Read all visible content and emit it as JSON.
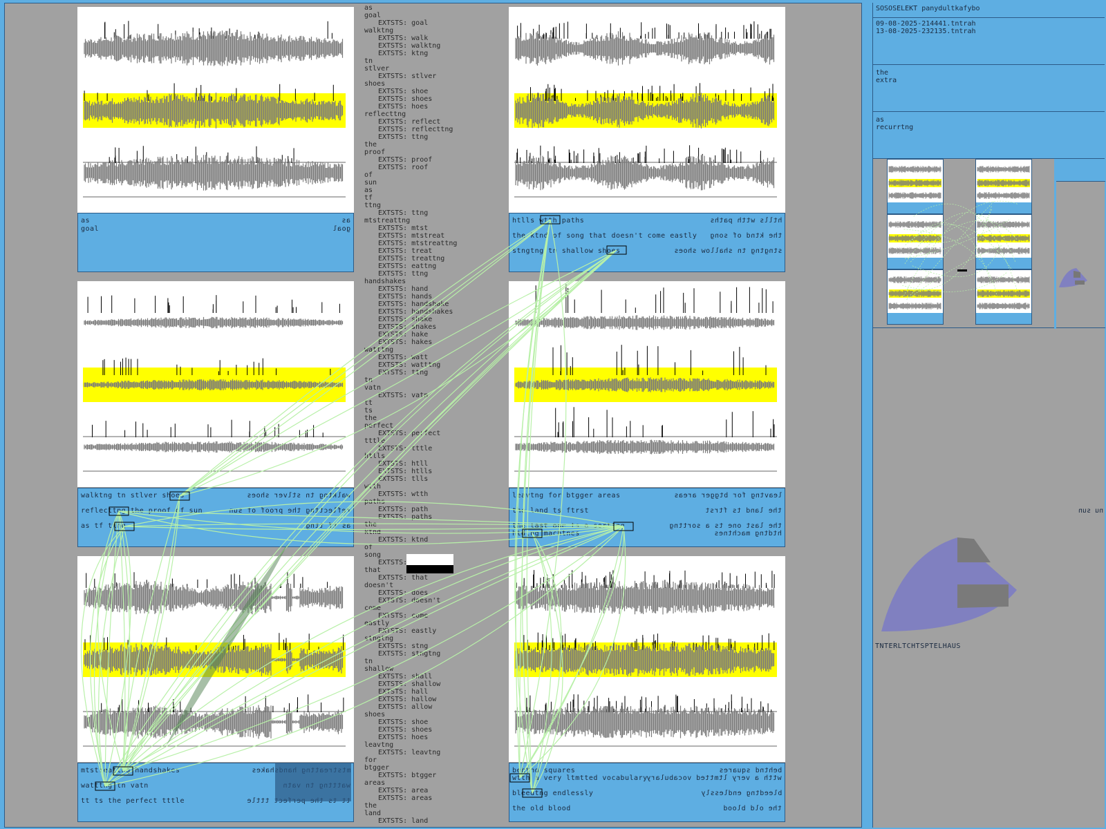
{
  "header": {
    "title": "SOSOSELEKT panydultkafybo",
    "files": [
      "09-08-2025-214441.tntrah",
      "13-08-2025-232135.tntrah"
    ]
  },
  "side_boxes": [
    {
      "lines": [
        "the",
        "extra"
      ]
    },
    {
      "lines": [
        "as",
        "recurrtng"
      ]
    }
  ],
  "footer_label": "TNTERLTCHTSPTELHAUS",
  "right_edge_text": "nu sun",
  "panels": [
    {
      "rows": [
        {
          "left": "as",
          "right": "as"
        },
        {
          "left": "goal",
          "right": "goal"
        }
      ]
    },
    {
      "rows": [
        {
          "left": "htlls wtth paths",
          "right": "htlls wtth paths"
        },
        {
          "left": "the ktnd of song that doesn't come eastly",
          "right": "the ktnd of song"
        },
        {
          "left": "stngtng tn shallow shoes",
          "right": "stngtng tn shallow shoes"
        }
      ]
    },
    {
      "rows": [
        {
          "left": "walktng tn stlver shoes",
          "right": "walktng tn stlver shoes"
        },
        {
          "left": "reflecttng the proof of sun",
          "right": "reflecttng the proof of sun"
        },
        {
          "left": "as tf ttng",
          "right": "as tf ttng"
        }
      ]
    },
    {
      "rows": [
        {
          "left": "leavtng for btgger areas",
          "right": "leavtng for btgger areas"
        },
        {
          "left": "the land ts ftrst",
          "right": "the land ts ftrst"
        },
        {
          "left": "the last one ts a sorttng",
          "right": "the last one ts a sorttng"
        },
        {
          "left": "htdtng machtnes",
          "right": "htdtng machtnes"
        }
      ]
    },
    {
      "rows": [
        {
          "left": "mtstreattng handshakes",
          "right": "mtstreattng handshakes"
        },
        {
          "left": "watttng tn vatn",
          "right": "watttng tn vatn"
        },
        {
          "left": "tt ts the perfect tttle",
          "right": "tt ts the perfect tttle"
        }
      ]
    },
    {
      "rows": [
        {
          "left": "behtnd squares",
          "right": "behtnd squares"
        },
        {
          "left": "wtth a very ltmtted vocabulary",
          "right": "wtth a very ltmtted vocabulary"
        },
        {
          "left": "bleedtng endlessly",
          "right": "bleedtng endlessly"
        },
        {
          "left": "the old blood",
          "right": "the old blood"
        }
      ]
    }
  ],
  "word_list": [
    {
      "w": "as",
      "e": []
    },
    {
      "w": "goal",
      "e": [
        "EXTSTS: goal"
      ]
    },
    {
      "w": "walktng",
      "e": [
        "EXTSTS: walk",
        "EXTSTS: walktng",
        "EXTSTS: ktng"
      ]
    },
    {
      "w": "tn",
      "e": []
    },
    {
      "w": "stlver",
      "e": [
        "EXTSTS: stlver"
      ]
    },
    {
      "w": "shoes",
      "e": [
        "EXTSTS: shoe",
        "EXTSTS: shoes",
        "EXTSTS: hoes"
      ]
    },
    {
      "w": "reflecttng",
      "e": [
        "EXTSTS: reflect",
        "EXTSTS: reflecttng",
        "EXTSTS: ttng"
      ]
    },
    {
      "w": "the",
      "e": []
    },
    {
      "w": "proof",
      "e": [
        "EXTSTS: proof",
        "EXTSTS: roof"
      ]
    },
    {
      "w": "of",
      "e": []
    },
    {
      "w": "sun",
      "e": []
    },
    {
      "w": "as",
      "e": []
    },
    {
      "w": "tf",
      "e": []
    },
    {
      "w": "ttng",
      "e": [
        "EXTSTS: ttng"
      ]
    },
    {
      "w": "mtstreattng",
      "e": [
        "EXTSTS: mtst",
        "EXTSTS: mtstreat",
        "EXTSTS: mtstreattng",
        "EXTSTS: treat",
        "EXTSTS: treattng",
        "EXTSTS: eattng",
        "EXTSTS: ttng"
      ]
    },
    {
      "w": "handshakes",
      "e": [
        "EXTSTS: hand",
        "EXTSTS: hands",
        "EXTSTS: handshake",
        "EXTSTS: handshakes",
        "EXTSTS: shake",
        "EXTSTS: shakes",
        "EXTSTS: hake",
        "EXTSTS: hakes"
      ]
    },
    {
      "w": "watttng",
      "e": [
        "EXTSTS: watt",
        "EXTSTS: watttng",
        "EXTSTS: ttng"
      ]
    },
    {
      "w": "tn",
      "e": []
    },
    {
      "w": "vatn",
      "e": [
        "EXTSTS: vatn"
      ]
    },
    {
      "w": "tt",
      "e": []
    },
    {
      "w": "ts",
      "e": []
    },
    {
      "w": "the",
      "e": []
    },
    {
      "w": "perfect",
      "e": [
        "EXTSTS: perfect"
      ]
    },
    {
      "w": "tttle",
      "e": [
        "EXTSTS: tttle"
      ]
    },
    {
      "w": "htlls",
      "e": [
        "EXTSTS: htll",
        "EXTSTS: htlls",
        "EXTSTS: tlls"
      ]
    },
    {
      "w": "wtth",
      "e": [
        "EXTSTS: wtth"
      ]
    },
    {
      "w": "paths",
      "e": [
        "EXTSTS: path",
        "EXTSTS: paths"
      ]
    },
    {
      "w": "the",
      "e": []
    },
    {
      "w": "ktnd",
      "e": [
        "EXTSTS: ktnd"
      ]
    },
    {
      "w": "of",
      "e": []
    },
    {
      "w": "song",
      "e": [
        "EXTSTS: song"
      ]
    },
    {
      "w": "that",
      "e": [
        "EXTSTS: that"
      ]
    },
    {
      "w": "doesn't",
      "e": [
        "EXTSTS: does",
        "EXTSTS: doesn't"
      ]
    },
    {
      "w": "come",
      "e": [
        "EXTSTS: come"
      ]
    },
    {
      "w": "eastly",
      "e": [
        "EXTSTS: eastly"
      ]
    },
    {
      "w": "stngtng",
      "e": [
        "EXTSTS: stng",
        "EXTSTS: stngtng"
      ]
    },
    {
      "w": "tn",
      "e": []
    },
    {
      "w": "shallow",
      "e": [
        "EXTSTS: shall",
        "EXTSTS: shallow",
        "EXTSTS: hall",
        "EXTSTS: hallow",
        "EXTSTS: allow"
      ]
    },
    {
      "w": "shoes",
      "e": [
        "EXTSTS: shoe",
        "EXTSTS: shoes",
        "EXTSTS: hoes"
      ]
    },
    {
      "w": "leavtng",
      "e": [
        "EXTSTS: leavtng"
      ]
    },
    {
      "w": "for",
      "e": []
    },
    {
      "w": "btgger",
      "e": [
        "EXTSTS: btgger"
      ]
    },
    {
      "w": "areas",
      "e": [
        "EXTSTS: area",
        "EXTSTS: areas"
      ]
    },
    {
      "w": "the",
      "e": []
    },
    {
      "w": "land",
      "e": [
        "EXTSTS: land"
      ]
    }
  ],
  "colors": {
    "blue": "#5eaee2",
    "gray": "#a1a1a1",
    "yellow": "#ffff00",
    "wave": "#7a7a7a",
    "link": "#b8f0a8",
    "purple": "#8080c0"
  }
}
